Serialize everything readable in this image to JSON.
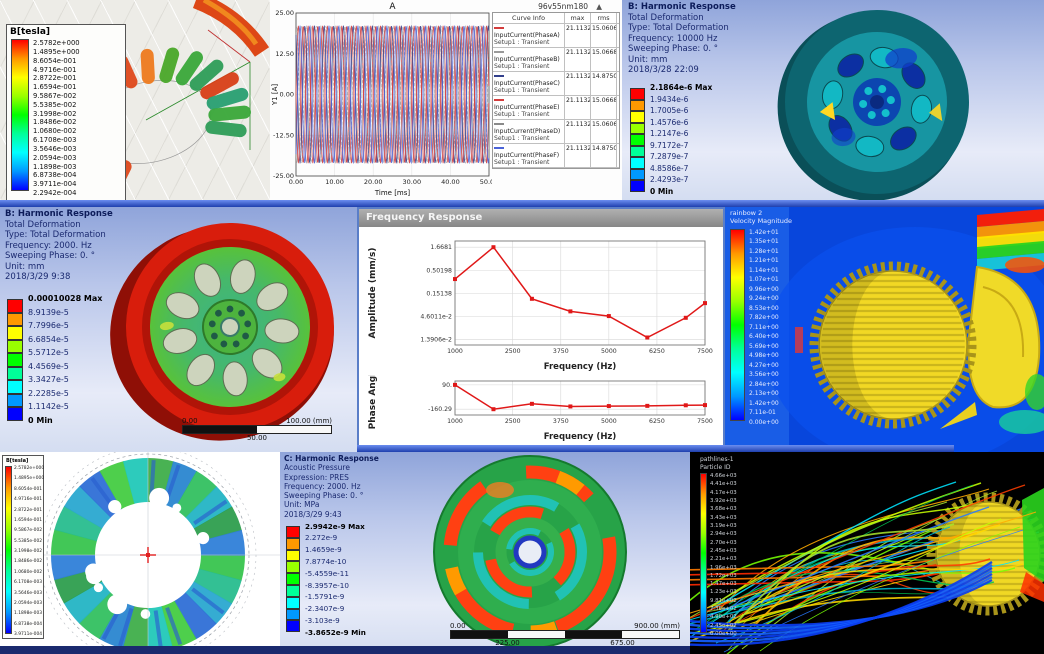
{
  "colors": {
    "ansys_bands": [
      "#ff0000",
      "#ff9900",
      "#ffff00",
      "#99ff00",
      "#00ff00",
      "#00ff99",
      "#00ffff",
      "#0099ff",
      "#0000ff"
    ],
    "curve_red": "#d43c3c",
    "curve_blue": "#4a62d8",
    "curve_navy": "#323f8c",
    "response_red": "#e01818"
  },
  "panels": {
    "flux_torus": {
      "legend_title": "B[tesla]",
      "values": [
        "2.5782e+000",
        "1.4895e+000",
        "8.6054e-001",
        "4.9716e-001",
        "2.8722e-001",
        "1.6594e-001",
        "9.5867e-002",
        "5.5385e-002",
        "3.1998e-002",
        "1.8486e-002",
        "1.0680e-002",
        "6.1708e-003",
        "3.5646e-003",
        "2.0594e-003",
        "1.1898e-003",
        "6.8738e-004",
        "3.9711e-004",
        "2.2942e-004"
      ]
    },
    "transient": {
      "window_label": "96v55nm180",
      "window_menu_glyph": "▲",
      "table_headers": [
        "Curve Info",
        "max",
        "rms"
      ]
    },
    "harmonic_10000": {
      "title": "B: Harmonic Response",
      "lines": [
        "Total Deformation",
        "Type: Total Deformation",
        "Frequency: 10000 Hz",
        "Sweeping Phase: 0. °",
        "Unit: mm",
        "2018/3/28 22:09"
      ],
      "legend_values": [
        "2.1864e-6 Max",
        "1.9434e-6",
        "1.7005e-6",
        "1.4576e-6",
        "1.2147e-6",
        "9.7172e-7",
        "7.2879e-7",
        "4.8586e-7",
        "2.4293e-7",
        "0 Min"
      ]
    },
    "harmonic_2000": {
      "title": "B: Harmonic Response",
      "lines": [
        "Total Deformation",
        "Type: Total Deformation",
        "Frequency: 2000. Hz",
        "Sweeping Phase: 0. °",
        "Unit: mm",
        "2018/3/29 9:38"
      ],
      "legend_values": [
        "0.00010028 Max",
        "8.9139e-5",
        "7.7996e-5",
        "6.6854e-5",
        "5.5712e-5",
        "4.4569e-5",
        "3.3427e-5",
        "2.2285e-5",
        "1.1142e-5",
        "0 Min"
      ],
      "scale": {
        "left": "0.00",
        "right": "100.00 (mm)",
        "mid": "50.00"
      }
    },
    "frequency_response": {
      "window_title": "Frequency Response"
    },
    "velocity_contour": {
      "legend_title1": "rainbow 2",
      "legend_title2": "Velocity Magnitude",
      "values": [
        "1.42e+01",
        "1.35e+01",
        "1.28e+01",
        "1.21e+01",
        "1.14e+01",
        "1.07e+01",
        "9.96e+00",
        "9.24e+00",
        "8.53e+00",
        "7.82e+00",
        "7.11e+00",
        "6.40e+00",
        "5.69e+00",
        "4.98e+00",
        "4.27e+00",
        "3.56e+00",
        "2.84e+00",
        "2.13e+00",
        "1.42e+00",
        "7.11e-01",
        "0.00e+00"
      ]
    },
    "flux_rotor": {
      "legend_title": "B[tesla]",
      "values": [
        "2.5782e+000",
        "1.4895e+000",
        "8.6054e-001",
        "4.9716e-001",
        "2.8722e-001",
        "1.6594e-001",
        "9.5867e-002",
        "5.5385e-002",
        "3.1998e-002",
        "1.8486e-002",
        "1.0680e-002",
        "6.1708e-003",
        "3.5646e-003",
        "2.0594e-003",
        "1.1898e-003",
        "6.8738e-004",
        "3.9711e-004"
      ],
      "ring_colors": [
        "#38c44e",
        "#28bd8e",
        "#2aa8d0",
        "#2f6fd6",
        "#45cc42",
        "#22c8b8",
        "#3fae4a",
        "#2a86d0",
        "#33c060",
        "#24b4c4",
        "#2e9e4e",
        "#2f80d8"
      ]
    },
    "acoustic": {
      "title": "C: Harmonic Response",
      "lines": [
        "Acoustic Pressure",
        "Expression: PRES",
        "Frequency: 2000. Hz",
        "Sweeping Phase: 0. °",
        "Unit: MPa",
        "2018/3/29 9:43"
      ],
      "legend_values": [
        "2.9942e-9 Max",
        "2.272e-9",
        "1.4659e-9",
        "7.8774e-10",
        "-5.4559e-11",
        "-8.3957e-10",
        "-1.5791e-9",
        "-2.3407e-9",
        "-3.103e-9",
        "-3.8652e-9 Min"
      ],
      "scale": {
        "left": "0.00",
        "right": "900.00 (mm)",
        "below_left": "225.00",
        "below_right": "675.00"
      }
    },
    "pathlines": {
      "legend_title1": "pathlines-1",
      "legend_title2": "Particle ID",
      "values": [
        "4.66e+03",
        "4.41e+03",
        "4.17e+03",
        "3.92e+03",
        "3.68e+03",
        "3.43e+03",
        "3.19e+03",
        "2.94e+03",
        "2.70e+03",
        "2.45e+03",
        "2.21e+03",
        "1.96e+03",
        "1.72e+03",
        "1.47e+03",
        "1.23e+03",
        "9.81e+02",
        "7.36e+02",
        "4.90e+02",
        "2.45e+02",
        "0.00e+00"
      ],
      "palette": [
        "#ffd800",
        "#a6e22e",
        "#00c853",
        "#00bcd4",
        "#ff3d00",
        "#2979ff",
        "#76ff03",
        "#ffab00",
        "#00e5ff",
        "#c6ff00"
      ]
    }
  },
  "chart_data": [
    {
      "type": "line",
      "name": "transient-current",
      "title": "A",
      "xlabel": "Time [ms]",
      "ylabel": "Y1 [A]",
      "xlim": [
        0,
        50
      ],
      "ylim": [
        -25,
        25
      ],
      "xticks": [
        "0.00",
        "10.00",
        "20.00",
        "30.00",
        "40.00",
        "50.00"
      ],
      "yticks": [
        "25.00",
        "12.50",
        "0.00",
        "-12.50",
        "-25.00"
      ],
      "amplitude": 21.1132,
      "period_ms": 2.5,
      "grid": true,
      "legend_position": "right",
      "series": [
        {
          "name": "InputCurrent(PhaseA)",
          "setup": "Setup1 : Transient",
          "color": "#d43c3c",
          "dash": "",
          "phase_deg": 0,
          "max": "21.1132",
          "rms": "15.0606"
        },
        {
          "name": "InputCurrent(PhaseB)",
          "setup": "Setup1 : Transient",
          "color": "#9a9a9a",
          "dash": "",
          "phase_deg": 240,
          "max": "21.1132",
          "rms": "15.0668"
        },
        {
          "name": "InputCurrent(PhaseC)",
          "setup": "Setup1 : Transient",
          "color": "#323f8c",
          "dash": "",
          "phase_deg": 120,
          "max": "21.1132",
          "rms": "14.8750"
        },
        {
          "name": "InputCurrent(PhaseE)",
          "setup": "Setup1 : Transient",
          "color": "#d43c3c",
          "dash": "",
          "phase_deg": 180,
          "max": "21.1132",
          "rms": "15.0668"
        },
        {
          "name": "InputCurrent(PhaseD)",
          "setup": "Setup1 : Transient",
          "color": "#8a8a8a",
          "dash": "3 2",
          "phase_deg": 60,
          "max": "21.1132",
          "rms": "15.0606"
        },
        {
          "name": "InputCurrent(PhaseF)",
          "setup": "Setup1 : Transient",
          "color": "#4a62d8",
          "dash": "",
          "phase_deg": 300,
          "max": "21.1132",
          "rms": "14.8750"
        }
      ]
    },
    {
      "type": "line",
      "name": "amplitude-response",
      "ylabel": "Amplitude (mm/s)",
      "xlabel": "Frequency (Hz)",
      "yscale": "log",
      "grid": true,
      "xlim": [
        1000,
        7500
      ],
      "x": [
        1000,
        2000,
        3000,
        4000,
        5000,
        6000,
        7000,
        7500
      ],
      "y": [
        0.32,
        1.6681,
        0.115,
        0.06,
        0.047,
        0.0155,
        0.043,
        0.092
      ],
      "yticks": [
        "1.6681",
        "0.50198",
        "0.15138",
        "4.6011e-2",
        "1.3906e-2"
      ],
      "ytick_vals": [
        1.6681,
        0.50198,
        0.15138,
        0.046011,
        0.013906
      ],
      "xticks": [
        "1000",
        "2500",
        "3750",
        "5000",
        "6250",
        "7500"
      ],
      "xtick_vals": [
        1000,
        2500,
        3750,
        5000,
        6250,
        7500
      ],
      "color": "#e01818"
    },
    {
      "type": "line",
      "name": "phase-response",
      "ylabel": "Phase Angle",
      "xlabel": "Frequency (Hz)",
      "grid": true,
      "xlim": [
        1000,
        7500
      ],
      "ylim": [
        -220,
        130
      ],
      "x": [
        1000,
        2000,
        3000,
        4000,
        5000,
        6000,
        7000,
        7500
      ],
      "y": [
        90,
        -160.29,
        -105,
        -132,
        -128,
        -126,
        -120,
        -118
      ],
      "yticks": [
        "90.",
        "-160.29"
      ],
      "ytick_vals": [
        90,
        -160.29
      ],
      "xticks": [
        "1000",
        "2500",
        "3750",
        "5000",
        "6250",
        "7500"
      ],
      "xtick_vals": [
        1000,
        2500,
        3750,
        5000,
        6250,
        7500
      ],
      "color": "#e01818"
    }
  ]
}
